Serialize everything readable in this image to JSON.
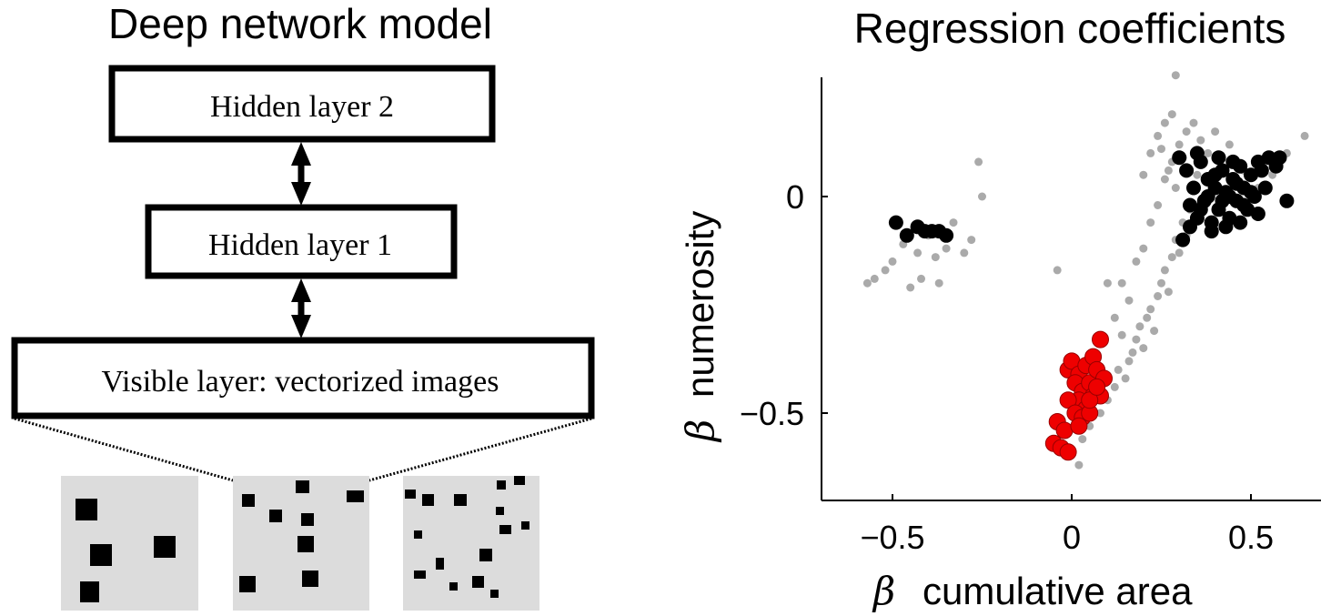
{
  "left_panel": {
    "title": "Deep network model",
    "layers": [
      {
        "label": "Hidden layer 2"
      },
      {
        "label": "Hidden layer 1"
      },
      {
        "label": "Visible layer: vectorized images"
      }
    ],
    "input_images": [
      {
        "name": "few-large-squares",
        "count": 4
      },
      {
        "name": "medium-squares",
        "count": 9
      },
      {
        "name": "many-small-squares",
        "count": 16
      }
    ],
    "colors": {
      "box_border": "#000000",
      "image_bg": "#dcdcdc",
      "square": "#000000"
    }
  },
  "chart_data": {
    "type": "scatter",
    "title": "Regression coefficients",
    "xlabel_symbol": "β",
    "xlabel": "cumulative area",
    "ylabel_symbol": "β",
    "ylabel": "numerosity",
    "xlim": [
      -0.7,
      0.7
    ],
    "ylim": [
      -0.7,
      0.28
    ],
    "xticks": [
      "−0.5",
      "0",
      "0.5"
    ],
    "xtick_values": [
      -0.5,
      0,
      0.5
    ],
    "yticks": [
      "−0.5",
      "0"
    ],
    "ytick_values": [
      -0.5,
      0
    ],
    "series": [
      {
        "color": "#aaaaaa",
        "values": [
          [
            -0.57,
            -0.2
          ],
          [
            -0.55,
            -0.19
          ],
          [
            -0.52,
            -0.17
          ],
          [
            -0.5,
            -0.15
          ],
          [
            -0.47,
            -0.11
          ],
          [
            -0.45,
            -0.21
          ],
          [
            -0.43,
            -0.13
          ],
          [
            -0.42,
            -0.19
          ],
          [
            -0.4,
            -0.09
          ],
          [
            -0.38,
            -0.14
          ],
          [
            -0.37,
            -0.2
          ],
          [
            -0.35,
            -0.12
          ],
          [
            -0.33,
            -0.06
          ],
          [
            -0.3,
            -0.13
          ],
          [
            -0.28,
            -0.1
          ],
          [
            -0.26,
            0.08
          ],
          [
            -0.25,
            0.0
          ],
          [
            -0.04,
            -0.17
          ],
          [
            0.02,
            -0.62
          ],
          [
            0.03,
            -0.56
          ],
          [
            0.05,
            -0.53
          ],
          [
            0.08,
            -0.5
          ],
          [
            0.1,
            -0.47
          ],
          [
            0.12,
            -0.44
          ],
          [
            0.13,
            -0.4
          ],
          [
            0.15,
            -0.42
          ],
          [
            0.16,
            -0.38
          ],
          [
            0.17,
            -0.36
          ],
          [
            0.18,
            -0.33
          ],
          [
            0.19,
            -0.3
          ],
          [
            0.2,
            -0.35
          ],
          [
            0.21,
            -0.28
          ],
          [
            0.22,
            -0.26
          ],
          [
            0.23,
            -0.31
          ],
          [
            0.24,
            -0.23
          ],
          [
            0.25,
            -0.2
          ],
          [
            0.26,
            -0.17
          ],
          [
            0.27,
            -0.22
          ],
          [
            0.28,
            -0.14
          ],
          [
            0.29,
            -0.1
          ],
          [
            0.3,
            -0.13
          ],
          [
            0.31,
            -0.06
          ],
          [
            0.32,
            -0.09
          ],
          [
            0.33,
            -0.03
          ],
          [
            0.14,
            -0.2
          ],
          [
            0.16,
            -0.24
          ],
          [
            0.18,
            -0.15
          ],
          [
            0.2,
            -0.12
          ],
          [
            0.22,
            -0.06
          ],
          [
            0.24,
            -0.02
          ],
          [
            0.26,
            0.04
          ],
          [
            0.28,
            0.08
          ],
          [
            0.3,
            0.12
          ],
          [
            0.32,
            0.15
          ],
          [
            0.34,
            0.17
          ],
          [
            0.36,
            0.13
          ],
          [
            0.38,
            0.1
          ],
          [
            0.4,
            0.15
          ],
          [
            0.2,
            0.05
          ],
          [
            0.22,
            0.1
          ],
          [
            0.24,
            0.14
          ],
          [
            0.26,
            0.17
          ],
          [
            0.28,
            0.19
          ],
          [
            0.25,
            0.11
          ],
          [
            0.27,
            0.06
          ],
          [
            0.29,
            0.02
          ],
          [
            0.31,
            0.09
          ],
          [
            0.35,
            0.05
          ],
          [
            0.44,
            0.12
          ],
          [
            0.48,
            0.06
          ],
          [
            0.52,
            0.02
          ],
          [
            0.56,
            0.05
          ],
          [
            0.6,
            0.1
          ],
          [
            0.65,
            0.14
          ],
          [
            0.29,
            0.28
          ],
          [
            0.1,
            -0.2
          ],
          [
            0.12,
            -0.28
          ],
          [
            0.06,
            -0.38
          ],
          [
            0.14,
            -0.32
          ]
        ]
      },
      {
        "color": "#000000",
        "values": [
          [
            -0.49,
            -0.06
          ],
          [
            -0.46,
            -0.09
          ],
          [
            -0.43,
            -0.07
          ],
          [
            -0.41,
            -0.08
          ],
          [
            -0.39,
            -0.08
          ],
          [
            -0.37,
            -0.08
          ],
          [
            -0.35,
            -0.09
          ],
          [
            0.3,
            0.09
          ],
          [
            0.32,
            0.06
          ],
          [
            0.34,
            0.02
          ],
          [
            0.33,
            -0.02
          ],
          [
            0.35,
            -0.05
          ],
          [
            0.31,
            -0.1
          ],
          [
            0.36,
            0.08
          ],
          [
            0.38,
            0.04
          ],
          [
            0.37,
            -0.01
          ],
          [
            0.39,
            -0.06
          ],
          [
            0.4,
            0.02
          ],
          [
            0.41,
            -0.03
          ],
          [
            0.42,
            0.06
          ],
          [
            0.43,
            0.01
          ],
          [
            0.44,
            -0.05
          ],
          [
            0.45,
            0.04
          ],
          [
            0.46,
            -0.01
          ],
          [
            0.47,
            0.07
          ],
          [
            0.48,
            0.02
          ],
          [
            0.49,
            -0.03
          ],
          [
            0.5,
            0.05
          ],
          [
            0.51,
            0.0
          ],
          [
            0.52,
            -0.04
          ],
          [
            0.53,
            0.06
          ],
          [
            0.54,
            0.02
          ],
          [
            0.55,
            0.09
          ],
          [
            0.57,
            0.07
          ],
          [
            0.58,
            0.09
          ],
          [
            0.6,
            -0.01
          ],
          [
            0.35,
            0.1
          ],
          [
            0.33,
            -0.07
          ],
          [
            0.36,
            -0.03
          ],
          [
            0.38,
            0.0
          ],
          [
            0.4,
            0.05
          ],
          [
            0.42,
            -0.01
          ],
          [
            0.44,
            0.0
          ],
          [
            0.46,
            0.03
          ],
          [
            0.48,
            -0.02
          ],
          [
            0.5,
            0.01
          ],
          [
            0.41,
            0.09
          ],
          [
            0.45,
            0.08
          ],
          [
            0.52,
            0.08
          ],
          [
            0.39,
            -0.08
          ],
          [
            0.43,
            -0.07
          ],
          [
            0.47,
            -0.06
          ]
        ]
      },
      {
        "color": "#ee0000",
        "values": [
          [
            -0.01,
            -0.4
          ],
          [
            0.0,
            -0.38
          ],
          [
            0.02,
            -0.41
          ],
          [
            0.04,
            -0.39
          ],
          [
            0.06,
            -0.37
          ],
          [
            0.08,
            -0.33
          ],
          [
            0.01,
            -0.43
          ],
          [
            0.03,
            -0.45
          ],
          [
            0.05,
            -0.43
          ],
          [
            0.07,
            -0.4
          ],
          [
            0.09,
            -0.42
          ],
          [
            0.02,
            -0.47
          ],
          [
            0.04,
            -0.49
          ],
          [
            0.06,
            -0.46
          ],
          [
            0.08,
            -0.46
          ],
          [
            -0.01,
            -0.47
          ],
          [
            0.01,
            -0.5
          ],
          [
            0.03,
            -0.51
          ],
          [
            0.05,
            -0.5
          ],
          [
            -0.04,
            -0.52
          ],
          [
            -0.02,
            -0.54
          ],
          [
            -0.05,
            -0.57
          ],
          [
            -0.03,
            -0.58
          ],
          [
            -0.01,
            -0.59
          ],
          [
            0.02,
            -0.53
          ],
          [
            0.05,
            -0.47
          ],
          [
            0.07,
            -0.44
          ]
        ]
      }
    ]
  }
}
